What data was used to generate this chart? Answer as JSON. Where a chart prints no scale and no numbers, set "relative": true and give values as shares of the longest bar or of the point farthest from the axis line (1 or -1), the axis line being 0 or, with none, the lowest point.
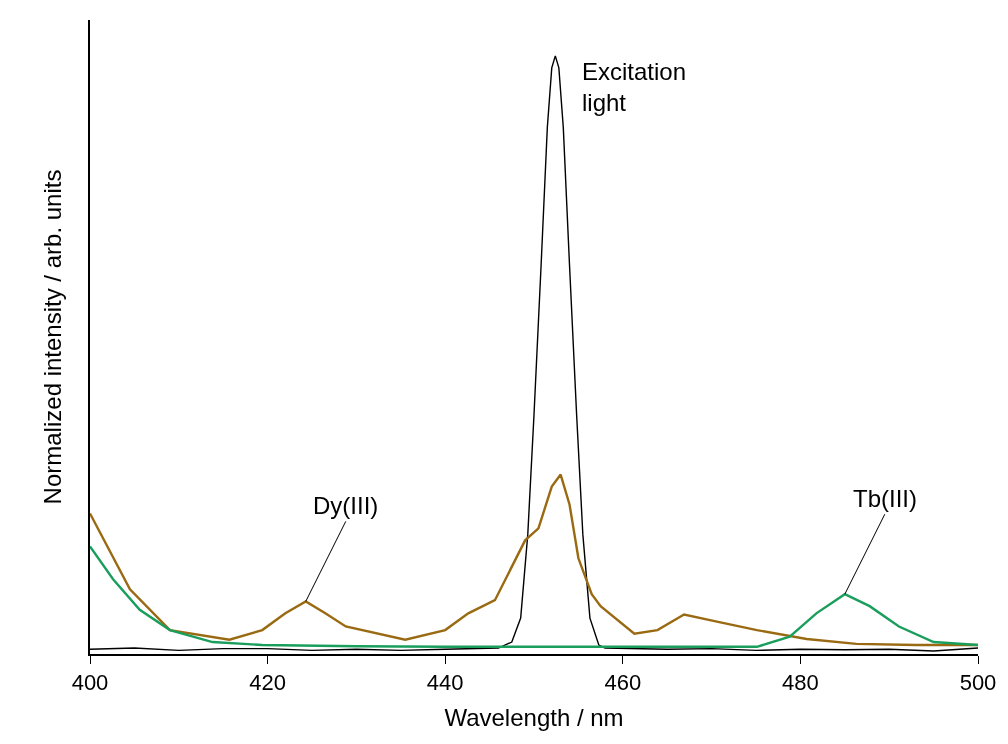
{
  "chart_data": {
    "type": "line",
    "relative": true,
    "xlabel": "Wavelength / nm",
    "ylabel": "Normalized intensity / arb. units",
    "xlim": [
      400,
      500
    ],
    "xticks": [
      400,
      420,
      440,
      460,
      480,
      500
    ],
    "marker": "none",
    "line_style": "solid",
    "series": [
      {
        "color": "#000000",
        "x": [
          400,
          405,
          410,
          415,
          420,
          425,
          430,
          435,
          440,
          446,
          447.5,
          448.5,
          449.3,
          450,
          450.8,
          451.5,
          452,
          452.4,
          452.8,
          453.3,
          454,
          454.8,
          455.5,
          456.3,
          457.3,
          458,
          465,
          470,
          475,
          480,
          485,
          490,
          495,
          500
        ],
        "values": [
          0.008,
          0.01,
          0.006,
          0.009,
          0.009,
          0.006,
          0.008,
          0.006,
          0.008,
          0.01,
          0.02,
          0.06,
          0.2,
          0.4,
          0.65,
          0.88,
          0.98,
          1.0,
          0.98,
          0.88,
          0.65,
          0.4,
          0.2,
          0.06,
          0.015,
          0.01,
          0.008,
          0.009,
          0.006,
          0.008,
          0.007,
          0.008,
          0.005,
          0.01
        ]
      },
      {
        "color": "#9a6a12",
        "x": [
          400,
          404.5,
          409,
          415.7,
          419.4,
          422,
          424.3,
          426.5,
          428.8,
          435.5,
          440,
          442.6,
          445.6,
          449,
          450.5,
          452,
          453,
          454,
          455,
          456.5,
          457.5,
          461.3,
          463.9,
          466.9,
          470.6,
          475.1,
          480.7,
          486.3,
          493,
          500
        ],
        "values": [
          0.235,
          0.108,
          0.04,
          0.024,
          0.04,
          0.068,
          0.088,
          0.068,
          0.046,
          0.024,
          0.04,
          0.068,
          0.09,
          0.19,
          0.21,
          0.28,
          0.3,
          0.25,
          0.16,
          0.1,
          0.08,
          0.034,
          0.04,
          0.066,
          0.054,
          0.04,
          0.025,
          0.017,
          0.015,
          0.015
        ]
      },
      {
        "color": "#1a9e5c",
        "x": [
          400,
          402.6,
          405.6,
          409,
          413.8,
          419.4,
          430,
          440,
          450,
          460,
          470,
          475.1,
          478.8,
          481.8,
          485,
          487.8,
          491.1,
          495,
          500
        ],
        "values": [
          0.18,
          0.125,
          0.074,
          0.04,
          0.02,
          0.015,
          0.013,
          0.012,
          0.012,
          0.012,
          0.012,
          0.012,
          0.029,
          0.068,
          0.1,
          0.08,
          0.046,
          0.02,
          0.015
        ]
      }
    ],
    "annotations": [
      {
        "text": "Excitation\nlight",
        "x": 452.4,
        "y": 1.0
      },
      {
        "text": "Dy(III)",
        "x": 424.3,
        "y": 0.088
      },
      {
        "text": "Tb(III)",
        "x": 485,
        "y": 0.1
      }
    ]
  }
}
